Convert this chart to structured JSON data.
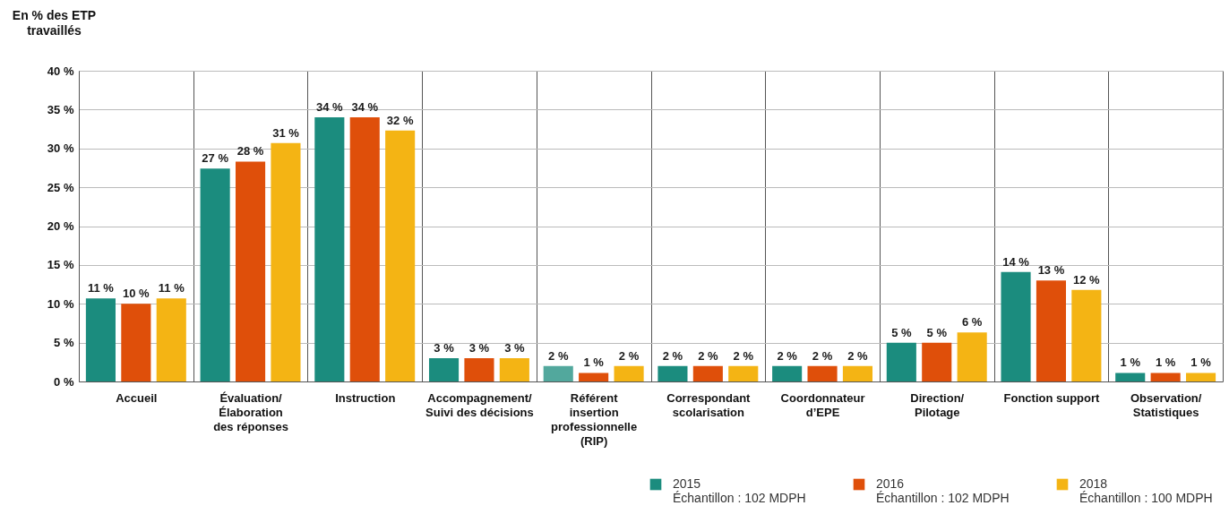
{
  "chart_data": {
    "type": "bar",
    "ylabel": "En % des ETP\ntravaillés",
    "categories": [
      "Accueil",
      "Évaluation/\nÉlaboration\ndes réponses",
      "Instruction",
      "Accompagnement/\nSuivi des décisions",
      "Référent\ninsertion\nprofessionnelle\n(RIP)",
      "Correspondant\nscolarisation",
      "Coordonnateur\nd’EPE",
      "Direction/\nPilotage",
      "Fonction support",
      "Observation/\nStatistiques"
    ],
    "series": [
      {
        "name": "2015\nÉchantillon : 102 MDPH",
        "color": "#1b8c7e",
        "colors": [
          "#1b8c7e",
          "#1b8c7e",
          "#1b8c7e",
          "#1b8c7e",
          "#52a89d",
          "#1b8c7e",
          "#1b8c7e",
          "#1b8c7e",
          "#1b8c7e",
          "#1b8c7e"
        ],
        "values": [
          10.7,
          27.4,
          34,
          3,
          2,
          2,
          2,
          5,
          14.1,
          1.1
        ],
        "value_labels": [
          "11 %",
          "27 %",
          "34 %",
          "3 %",
          "2 %",
          "2 %",
          "2 %",
          "5 %",
          "14 %",
          "1 %"
        ]
      },
      {
        "name": "2016\nÉchantillon : 102 MDPH",
        "color": "#df4f0a",
        "values": [
          10,
          28.3,
          34,
          3,
          1.1,
          2,
          2,
          5,
          13,
          1.1
        ],
        "value_labels": [
          "10 %",
          "28 %",
          "34 %",
          "3 %",
          "1 %",
          "2 %",
          "2 %",
          "5 %",
          "13 %",
          "1 %"
        ]
      },
      {
        "name": "2018\nÉchantillon : 100 MDPH",
        "color": "#f4b414",
        "values": [
          10.7,
          30.7,
          32.3,
          3,
          2,
          2,
          2,
          6.3,
          11.8,
          1.1
        ],
        "value_labels": [
          "11 %",
          "31 %",
          "32 %",
          "3 %",
          "2 %",
          "2 %",
          "2 %",
          "6 %",
          "12 %",
          "1 %"
        ]
      }
    ],
    "ylim": [
      0,
      40
    ],
    "yticks": [
      {
        "value": 0,
        "label": "0 %"
      },
      {
        "value": 5,
        "label": "5 %"
      },
      {
        "value": 10,
        "label": "10 %"
      },
      {
        "value": 15,
        "label": "15 %"
      },
      {
        "value": 20,
        "label": "20 %"
      },
      {
        "value": 25,
        "label": "25 %"
      },
      {
        "value": 30,
        "label": "30 %"
      },
      {
        "value": 35,
        "label": "35 %"
      },
      {
        "value": 40,
        "label": "40 %"
      }
    ],
    "grid": true,
    "legend": "bottom right"
  }
}
